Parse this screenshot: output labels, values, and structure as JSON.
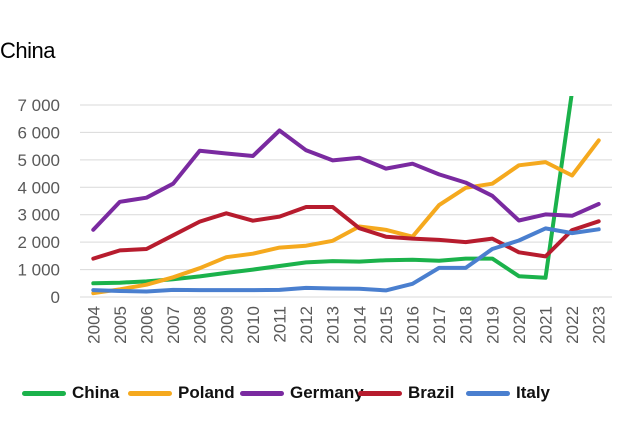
{
  "chart_data": {
    "type": "line",
    "title": "China",
    "xlabel": "",
    "ylabel": "",
    "ylim": [
      0,
      7000
    ],
    "yticks": [
      0,
      1000,
      2000,
      3000,
      4000,
      5000,
      6000,
      7000
    ],
    "ytick_labels": [
      "0",
      "1 000",
      "2 000",
      "3 000",
      "4 000",
      "5 000",
      "6 000",
      "7 000"
    ],
    "categories": [
      "2004",
      "2005",
      "2006",
      "2007",
      "2008",
      "2009",
      "2010",
      "2011",
      "2012",
      "2013",
      "2014",
      "2015",
      "2016",
      "2017",
      "2018",
      "2019",
      "2020",
      "2021",
      "2022",
      "2023"
    ],
    "grid": true,
    "legend_position": "bottom",
    "series": [
      {
        "name": "China",
        "color": "#1bb24b",
        "values": [
          500,
          520,
          570,
          650,
          750,
          880,
          1000,
          1130,
          1260,
          1310,
          1290,
          1340,
          1360,
          1320,
          1400,
          1400,
          760,
          700,
          7500,
          null
        ]
      },
      {
        "name": "Poland",
        "color": "#f5a91e",
        "values": [
          140,
          280,
          450,
          720,
          1050,
          1450,
          1580,
          1800,
          1870,
          2050,
          2570,
          2450,
          2200,
          3350,
          3980,
          4130,
          4800,
          4920,
          4430,
          5710
        ]
      },
      {
        "name": "Germany",
        "color": "#7a2aa0",
        "values": [
          2450,
          3470,
          3620,
          4130,
          5330,
          5230,
          5140,
          6070,
          5350,
          4980,
          5080,
          4680,
          4860,
          4470,
          4170,
          3690,
          2790,
          3010,
          2960,
          3390
        ]
      },
      {
        "name": "Brazil",
        "color": "#b71c2e",
        "values": [
          1400,
          1700,
          1750,
          2250,
          2750,
          3050,
          2780,
          2930,
          3280,
          3280,
          2510,
          2200,
          2130,
          2080,
          2000,
          2130,
          1630,
          1480,
          2440,
          2760
        ]
      },
      {
        "name": "Italy",
        "color": "#4a7fcf",
        "values": [
          250,
          220,
          200,
          260,
          250,
          250,
          250,
          260,
          330,
          310,
          300,
          240,
          480,
          1060,
          1060,
          1750,
          2060,
          2500,
          2330,
          2470
        ]
      }
    ]
  }
}
